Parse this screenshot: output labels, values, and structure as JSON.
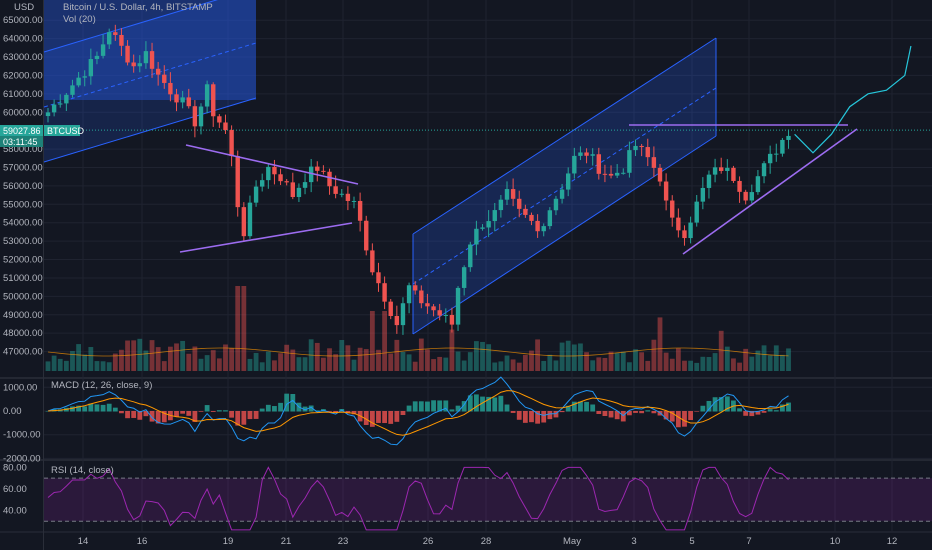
{
  "header": {
    "title": "Bitcoin / U.S. Dollar, 4h, BITSTAMP",
    "volume_label": "Vol (20)"
  },
  "price_axis": {
    "currency": "USD",
    "labels": [
      "65000.00",
      "64000.00",
      "63000.00",
      "62000.00",
      "61000.00",
      "60000.00",
      "58000.00",
      "57000.00",
      "56000.00",
      "55000.00",
      "54000.00",
      "53000.00",
      "52000.00",
      "51000.00",
      "50000.00",
      "49000.00",
      "48000.00",
      "47000.00"
    ]
  },
  "last_price": {
    "value": "59027.86",
    "symbol": "BTCUSD",
    "countdown": "03:11:45"
  },
  "macd": {
    "label": "MACD (12, 26, close, 9)",
    "labels": [
      "1000.00",
      "0.00",
      "-1000.00",
      "-2000.00"
    ]
  },
  "rsi": {
    "label": "RSI (14, close)",
    "labels": [
      "80.00",
      "60.00",
      "40.00"
    ]
  },
  "time_axis": {
    "labels": [
      "14",
      "16",
      "19",
      "21",
      "23",
      "26",
      "28",
      "May",
      "3",
      "5",
      "7",
      "10",
      "12"
    ]
  },
  "colors": {
    "background": "#131722",
    "up": "#26a69a",
    "down": "#ef5350",
    "channel": "#2962ff",
    "trendline": "#9c6cf0",
    "macd_line": "#2196f3",
    "signal_line": "#ff9800",
    "rsi_line": "#9c27b0",
    "projection": "#26c6da"
  },
  "chart_data": {
    "type": "candlestick",
    "title": "Bitcoin / U.S. Dollar, 4h, BITSTAMP",
    "ylim": [
      46000,
      65500
    ],
    "close_path": [
      [
        0,
        60000
      ],
      [
        4,
        61500
      ],
      [
        8,
        63000
      ],
      [
        10,
        64500
      ],
      [
        12,
        63500
      ],
      [
        14,
        62500
      ],
      [
        16,
        63200
      ],
      [
        18,
        62000
      ],
      [
        20,
        61200
      ],
      [
        22,
        60500
      ],
      [
        24,
        59500
      ],
      [
        26,
        61200
      ],
      [
        27,
        60000
      ],
      [
        29,
        59000
      ],
      [
        30,
        57500
      ],
      [
        31,
        55000
      ],
      [
        32,
        53500
      ],
      [
        34,
        56000
      ],
      [
        36,
        57000
      ],
      [
        38,
        56500
      ],
      [
        40,
        55500
      ],
      [
        42,
        56500
      ],
      [
        44,
        57000
      ],
      [
        46,
        56000
      ],
      [
        48,
        55500
      ],
      [
        50,
        55000
      ],
      [
        51,
        54000
      ],
      [
        53,
        51500
      ],
      [
        55,
        50000
      ],
      [
        57,
        48500
      ],
      [
        58,
        49500
      ],
      [
        59,
        50500
      ],
      [
        60,
        50000
      ],
      [
        62,
        49500
      ],
      [
        64,
        49000
      ],
      [
        66,
        48500
      ],
      [
        67,
        50500
      ],
      [
        69,
        53000
      ],
      [
        71,
        54000
      ],
      [
        73,
        54500
      ],
      [
        75,
        55500
      ],
      [
        77,
        54500
      ],
      [
        79,
        54000
      ],
      [
        80,
        53500
      ],
      [
        82,
        54800
      ],
      [
        84,
        56000
      ],
      [
        86,
        57500
      ],
      [
        88,
        57800
      ],
      [
        90,
        57000
      ],
      [
        92,
        56500
      ],
      [
        94,
        57000
      ],
      [
        96,
        58200
      ],
      [
        98,
        57500
      ],
      [
        100,
        56500
      ],
      [
        101,
        55000
      ],
      [
        102,
        54000
      ],
      [
        104,
        53500
      ],
      [
        106,
        55000
      ],
      [
        108,
        56500
      ],
      [
        110,
        57000
      ],
      [
        112,
        56500
      ],
      [
        114,
        55500
      ],
      [
        116,
        56500
      ],
      [
        118,
        57500
      ],
      [
        120,
        58500
      ],
      [
        121,
        59027
      ]
    ],
    "projection": [
      [
        122,
        58800
      ],
      [
        125,
        57800
      ],
      [
        128,
        58800
      ],
      [
        131,
        60300
      ],
      [
        134,
        61000
      ],
      [
        137,
        61200
      ],
      [
        140,
        62000
      ],
      [
        141,
        63600
      ]
    ],
    "rsi_levels": {
      "upper": 70,
      "lower": 30
    }
  }
}
